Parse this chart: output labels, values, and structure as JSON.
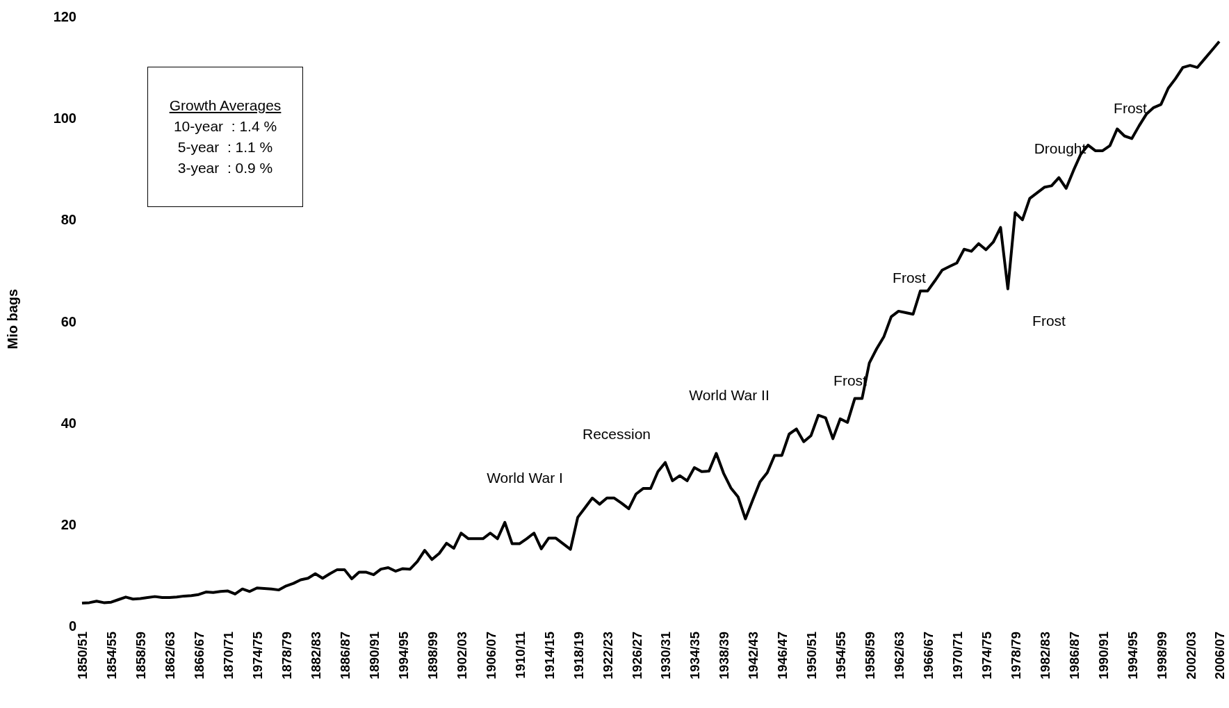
{
  "chart_data": {
    "type": "line",
    "ylabel": "Mio bags",
    "categories": [
      "1850/51",
      null,
      null,
      null,
      "1854/55",
      null,
      null,
      null,
      "1858/59",
      null,
      null,
      null,
      "1862/63",
      null,
      null,
      null,
      "1866/67",
      null,
      null,
      null,
      "1870/71",
      null,
      null,
      null,
      "1974/75",
      null,
      null,
      null,
      "1878/79",
      null,
      null,
      null,
      "1882/83",
      null,
      null,
      null,
      "1886/87",
      null,
      null,
      null,
      "1890/91",
      null,
      null,
      null,
      "1994/95",
      null,
      null,
      null,
      "1898/99",
      null,
      null,
      null,
      "1902/03",
      null,
      null,
      null,
      "1906/07",
      null,
      null,
      null,
      "1910/11",
      null,
      null,
      null,
      "1914/15",
      null,
      null,
      null,
      "1918/19",
      null,
      null,
      null,
      "1922/23",
      null,
      null,
      null,
      "1926/27",
      null,
      null,
      null,
      "1930/31",
      null,
      null,
      null,
      "1934/35",
      null,
      null,
      null,
      "1938/39",
      null,
      null,
      null,
      "1942/43",
      null,
      null,
      null,
      "1946/47",
      null,
      null,
      null,
      "1950/51",
      null,
      null,
      null,
      "1954/55",
      null,
      null,
      null,
      "1958/59",
      null,
      null,
      null,
      "1962/63",
      null,
      null,
      null,
      "1966/67",
      null,
      null,
      null,
      "1970/71",
      null,
      null,
      null,
      "1974/75",
      null,
      null,
      null,
      "1978/79",
      null,
      null,
      null,
      "1982/83",
      null,
      null,
      null,
      "1986/87",
      null,
      null,
      null,
      "1990/91",
      null,
      null,
      null,
      "1994/95",
      null,
      null,
      null,
      "1998/99",
      null,
      null,
      null,
      "2002/03",
      null,
      null,
      null,
      "2006/07"
    ],
    "series": [
      {
        "color": "#000000",
        "values": [
          4.5,
          4.6,
          4.9,
          4.6,
          4.7,
          5.2,
          5.7,
          5.3,
          5.4,
          5.6,
          5.8,
          5.6,
          5.6,
          5.7,
          5.9,
          6.0,
          6.2,
          6.7,
          6.6,
          6.8,
          6.9,
          6.3,
          7.3,
          6.8,
          7.5,
          7.4,
          7.3,
          7.1,
          7.9,
          8.4,
          9.1,
          9.4,
          10.3,
          9.4,
          10.3,
          11.1,
          11.1,
          9.3,
          10.6,
          10.6,
          10.1,
          11.2,
          11.5,
          10.8,
          11.3,
          11.2,
          12.7,
          14.9,
          13.1,
          14.3,
          16.3,
          15.3,
          18.3,
          17.2,
          17.2,
          17.2,
          18.3,
          17.2,
          20.4,
          16.2,
          16.2,
          17.2,
          18.3,
          15.2,
          17.3,
          17.3,
          16.2,
          15.1,
          21.4,
          23.3,
          25.2,
          24.0,
          25.2,
          25.2,
          24.2,
          23.1,
          26.0,
          27.1,
          27.1,
          30.4,
          32.2,
          28.6,
          29.6,
          28.6,
          31.2,
          30.4,
          30.5,
          34.0,
          30.1,
          27.2,
          25.4,
          21.1,
          24.8,
          28.4,
          30.2,
          33.6,
          33.6,
          37.8,
          38.8,
          36.3,
          37.5,
          41.5,
          41.0,
          36.9,
          40.8,
          40.1,
          44.8,
          44.8,
          51.8,
          54.6,
          57.0,
          60.9,
          62.0,
          61.7,
          61.4,
          66.0,
          66.0,
          68.0,
          70.1,
          70.8,
          71.5,
          74.2,
          73.8,
          75.3,
          74.1,
          75.6,
          78.5,
          66.4,
          81.4,
          80.0,
          84.2,
          85.3,
          86.4,
          86.7,
          88.3,
          86.2,
          89.7,
          92.9,
          94.7,
          93.6,
          93.6,
          94.6,
          97.9,
          96.5,
          96.0,
          98.5,
          100.8,
          102.1,
          102.7,
          105.9,
          107.8,
          110.0,
          110.4,
          110.0,
          111.7,
          113.4,
          115.1
        ]
      }
    ],
    "ylim": [
      0,
      120
    ],
    "yticks": [
      0,
      20,
      40,
      60,
      80,
      100,
      120
    ],
    "marker": "none",
    "line_style": "solid",
    "annotations": [
      "Growth Averages",
      "10-year  : 1.4 %",
      "5-year  : 1.1 %",
      "3-year  : 0.9 %",
      "World War I",
      "Recession",
      "World War II",
      "Frost",
      "Frost",
      "Frost",
      "Drought",
      "Frost"
    ]
  }
}
